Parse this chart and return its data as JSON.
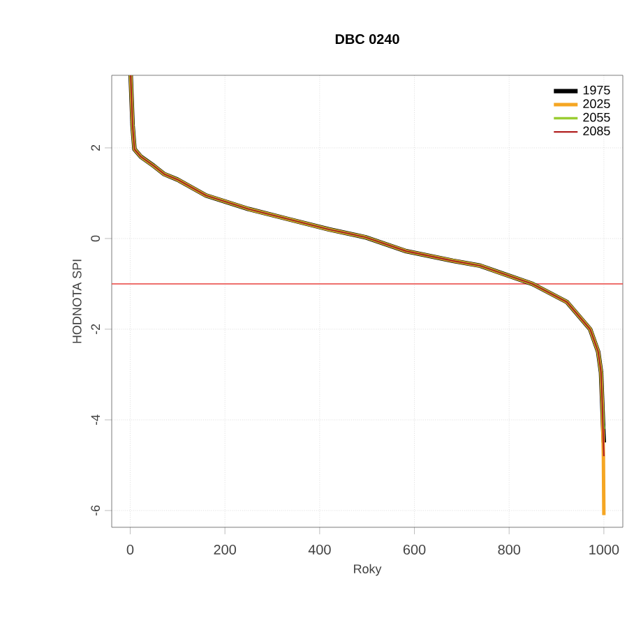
{
  "chart_data": {
    "type": "line",
    "title": "DBC 0240",
    "xlabel": "Roky",
    "ylabel": "HODNOTA SPI",
    "x": [
      1,
      5,
      9,
      23,
      50,
      72,
      100,
      160,
      250,
      333,
      420,
      496,
      583,
      681,
      739,
      777,
      849,
      922,
      971,
      988,
      994,
      997,
      999,
      1000
    ],
    "series": [
      {
        "name": "1975",
        "color": "#000000",
        "values": [
          3.6,
          2.5,
          1.97,
          1.8,
          1.6,
          1.42,
          1.3,
          0.95,
          0.65,
          0.43,
          0.2,
          0.03,
          -0.28,
          -0.49,
          -0.6,
          -0.74,
          -1.0,
          -1.4,
          -2.0,
          -2.5,
          -2.95,
          -3.75,
          -4.3,
          -4.5
        ]
      },
      {
        "name": "2025",
        "color": "#f5a623",
        "values": [
          3.6,
          2.5,
          1.97,
          1.8,
          1.6,
          1.42,
          1.3,
          0.95,
          0.65,
          0.43,
          0.2,
          0.03,
          -0.28,
          -0.49,
          -0.6,
          -0.74,
          -1.0,
          -1.4,
          -2.0,
          -2.5,
          -2.95,
          -3.75,
          -4.8,
          -6.1
        ]
      },
      {
        "name": "2055",
        "color": "#9acd32",
        "values": [
          3.6,
          2.5,
          1.97,
          1.8,
          1.6,
          1.42,
          1.3,
          0.95,
          0.65,
          0.43,
          0.2,
          0.03,
          -0.28,
          -0.49,
          -0.6,
          -0.74,
          -1.0,
          -1.4,
          -2.0,
          -2.5,
          -2.95,
          -3.75,
          -4.1,
          -4.2
        ]
      },
      {
        "name": "2085",
        "color": "#b22222",
        "values": [
          3.6,
          2.5,
          1.97,
          1.8,
          1.6,
          1.42,
          1.3,
          0.95,
          0.65,
          0.43,
          0.2,
          0.03,
          -0.28,
          -0.49,
          -0.6,
          -0.74,
          -1.0,
          -1.4,
          -2.0,
          -2.5,
          -2.95,
          -3.75,
          -4.5,
          -4.8
        ]
      }
    ],
    "xlim": [
      -39,
      1040
    ],
    "ylim": [
      -6.37,
      3.6
    ],
    "xticks": [
      0,
      200,
      400,
      600,
      800,
      1000
    ],
    "yticks": [
      -6,
      -4,
      -2,
      0,
      2
    ],
    "ref_lines": [
      {
        "axis": "y",
        "value": -1,
        "color": "#e8413c"
      }
    ],
    "grid": true,
    "legend": "top right",
    "line_style": "solid",
    "marker": "none"
  }
}
